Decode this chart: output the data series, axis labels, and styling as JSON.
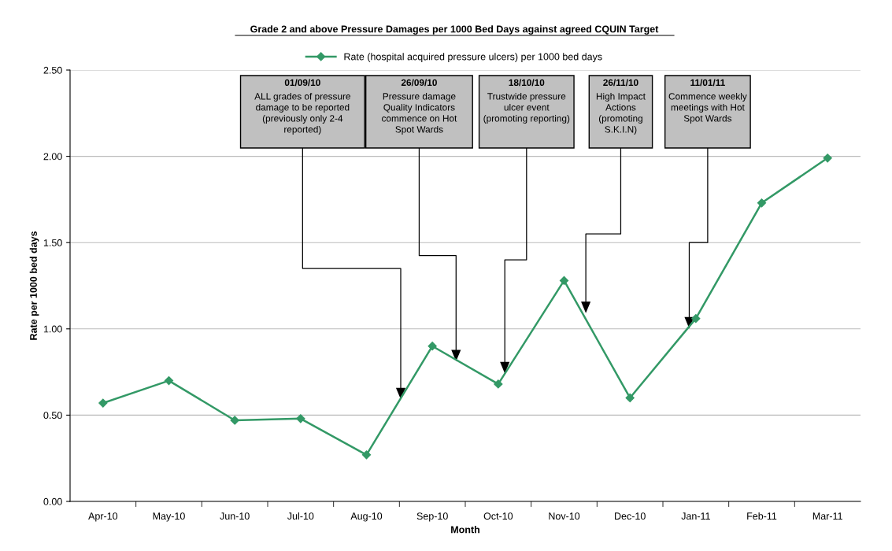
{
  "chart_data": {
    "type": "line",
    "title": "Grade 2 and above Pressure Damages per 1000 Bed Days against agreed CQUIN Target",
    "xlabel": "Month",
    "ylabel": "Rate per 1000 bed days",
    "categories": [
      "Apr-10",
      "May-10",
      "Jun-10",
      "Jul-10",
      "Aug-10",
      "Sep-10",
      "Oct-10",
      "Nov-10",
      "Dec-10",
      "Jan-11",
      "Feb-11",
      "Mar-11"
    ],
    "series": [
      {
        "name": "Rate (hospital acquired pressure ulcers) per 1000 bed days",
        "color": "#339966",
        "values": [
          0.57,
          0.7,
          0.47,
          0.48,
          0.27,
          0.9,
          0.68,
          1.28,
          0.6,
          1.06,
          1.73,
          1.99
        ]
      }
    ],
    "ylim": [
      0,
      2.5
    ],
    "yticks": [
      {
        "value": 0,
        "label": "0.00"
      },
      {
        "value": 0.5,
        "label": "0.50"
      },
      {
        "value": 1,
        "label": "1.00"
      },
      {
        "value": 1.5,
        "label": "1.50"
      },
      {
        "value": 2,
        "label": "2.00"
      },
      {
        "value": 2.5,
        "label": "2.50"
      }
    ],
    "grid": "y",
    "legend": "top",
    "marker": "diamond",
    "line_style": "solid",
    "annotations": [
      "01/09/10\nALL grades of pressure\ndamage to be reported\n(previously only 2-4\nreported)",
      "26/09/10\nPressure damage\nQuality Indicators\ncommence on Hot\nSpot Wards",
      "18/10/10\nTrustwide pressure\nulcer event\n(promoting reporting)",
      "26/11/10\nHigh Impact\nActions\n(promoting\nS.K.I.N)",
      "11/01/11\nCommence weekly\nmeetings with Hot\nSpot Wards"
    ]
  }
}
